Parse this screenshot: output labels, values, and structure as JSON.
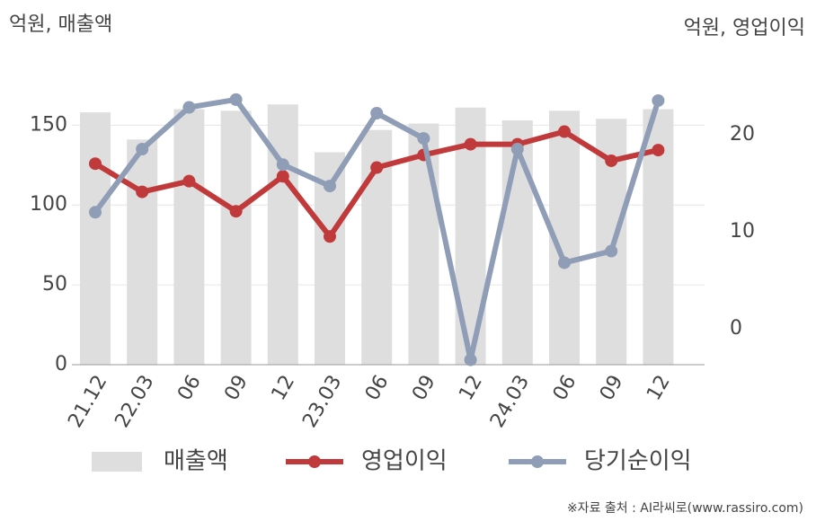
{
  "chart_data": {
    "type": "combo",
    "y_label": "억원, 매출액",
    "y2_label": "억원, 영업이익",
    "categories": [
      "21.12",
      "22.03",
      "06",
      "09",
      "12",
      "23.03",
      "06",
      "09",
      "12",
      "24.03",
      "06",
      "09",
      "12"
    ],
    "series": [
      {
        "name": "매출액",
        "type": "bar",
        "color": "#dedede",
        "values": [
          158,
          141,
          160,
          159,
          163,
          133,
          147,
          151,
          161,
          153,
          159,
          154,
          160
        ]
      },
      {
        "name": "영업이익",
        "type": "line",
        "axis": "y2",
        "color": "#c0393b",
        "values": [
          17.0,
          14.1,
          15.2,
          12.1,
          15.7,
          9.5,
          16.6,
          17.9,
          19.0,
          19.0,
          20.3,
          17.3,
          18.4
        ]
      },
      {
        "name": "당기순이익",
        "type": "line",
        "axis": "y2",
        "color": "#8f9db6",
        "values": [
          12.0,
          18.5,
          22.8,
          23.6,
          16.9,
          14.7,
          22.2,
          19.6,
          -3.2,
          18.5,
          6.8,
          8.0,
          23.5
        ]
      }
    ],
    "ylim": [
      0,
      180
    ],
    "yticks": [
      0,
      50,
      100,
      150
    ],
    "y2lim": [
      -3.7,
      25.9
    ],
    "y2ticks": [
      0,
      10,
      20
    ],
    "grid": true,
    "legend": "bottom",
    "source": "※자료 출처 : AI라씨로(www.rassiro.com)"
  }
}
